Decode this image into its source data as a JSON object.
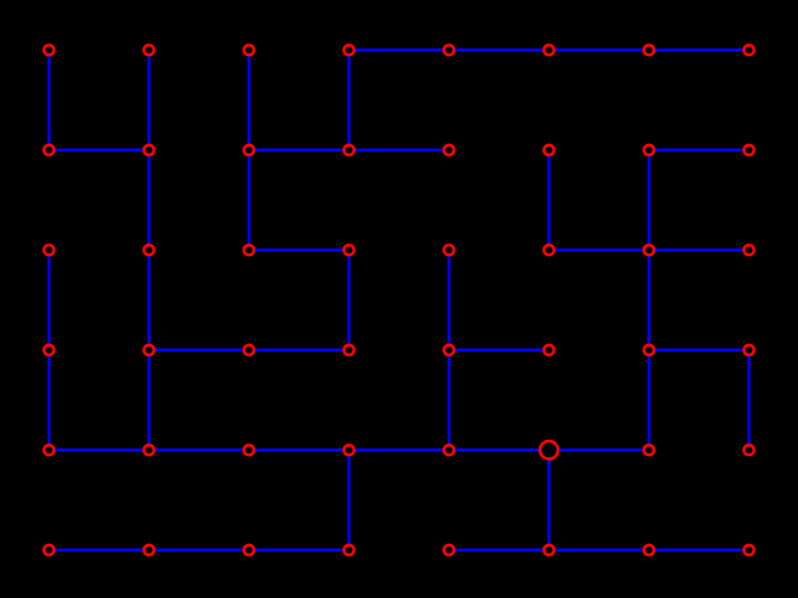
{
  "colors": {
    "background": "#000000",
    "edge": "#0000ff",
    "node": "#ff0000",
    "node_fill": "#000000"
  },
  "grid": {
    "columns": 8,
    "rows": 6
  },
  "highlighted_node": [
    5,
    4
  ],
  "edges": [
    [
      [
        0,
        0
      ],
      [
        0,
        1
      ]
    ],
    [
      [
        0,
        1
      ],
      [
        1,
        1
      ]
    ],
    [
      [
        1,
        0
      ],
      [
        1,
        1
      ]
    ],
    [
      [
        1,
        1
      ],
      [
        1,
        2
      ]
    ],
    [
      [
        1,
        2
      ],
      [
        1,
        3
      ]
    ],
    [
      [
        2,
        0
      ],
      [
        2,
        1
      ]
    ],
    [
      [
        2,
        1
      ],
      [
        3,
        1
      ]
    ],
    [
      [
        3,
        1
      ],
      [
        4,
        1
      ]
    ],
    [
      [
        2,
        1
      ],
      [
        2,
        2
      ]
    ],
    [
      [
        2,
        2
      ],
      [
        3,
        2
      ]
    ],
    [
      [
        3,
        2
      ],
      [
        3,
        3
      ]
    ],
    [
      [
        1,
        3
      ],
      [
        2,
        3
      ]
    ],
    [
      [
        2,
        3
      ],
      [
        3,
        3
      ]
    ],
    [
      [
        3,
        0
      ],
      [
        4,
        0
      ]
    ],
    [
      [
        4,
        0
      ],
      [
        5,
        0
      ]
    ],
    [
      [
        5,
        0
      ],
      [
        6,
        0
      ]
    ],
    [
      [
        6,
        0
      ],
      [
        7,
        0
      ]
    ],
    [
      [
        3,
        0
      ],
      [
        3,
        1
      ]
    ],
    [
      [
        5,
        1
      ],
      [
        5,
        2
      ]
    ],
    [
      [
        5,
        2
      ],
      [
        6,
        2
      ]
    ],
    [
      [
        6,
        2
      ],
      [
        7,
        2
      ]
    ],
    [
      [
        6,
        1
      ],
      [
        7,
        1
      ]
    ],
    [
      [
        6,
        1
      ],
      [
        6,
        2
      ]
    ],
    [
      [
        6,
        2
      ],
      [
        6,
        3
      ]
    ],
    [
      [
        6,
        3
      ],
      [
        6,
        4
      ]
    ],
    [
      [
        6,
        3
      ],
      [
        7,
        3
      ]
    ],
    [
      [
        7,
        3
      ],
      [
        7,
        4
      ]
    ],
    [
      [
        4,
        2
      ],
      [
        4,
        3
      ]
    ],
    [
      [
        4,
        3
      ],
      [
        5,
        3
      ]
    ],
    [
      [
        4,
        3
      ],
      [
        4,
        4
      ]
    ],
    [
      [
        0,
        2
      ],
      [
        0,
        3
      ]
    ],
    [
      [
        0,
        3
      ],
      [
        0,
        4
      ]
    ],
    [
      [
        1,
        3
      ],
      [
        1,
        4
      ]
    ],
    [
      [
        0,
        4
      ],
      [
        1,
        4
      ]
    ],
    [
      [
        1,
        4
      ],
      [
        2,
        4
      ]
    ],
    [
      [
        2,
        4
      ],
      [
        3,
        4
      ]
    ],
    [
      [
        3,
        4
      ],
      [
        4,
        4
      ]
    ],
    [
      [
        4,
        4
      ],
      [
        5,
        4
      ]
    ],
    [
      [
        5,
        4
      ],
      [
        6,
        4
      ]
    ],
    [
      [
        3,
        4
      ],
      [
        3,
        5
      ]
    ],
    [
      [
        0,
        5
      ],
      [
        1,
        5
      ]
    ],
    [
      [
        1,
        5
      ],
      [
        2,
        5
      ]
    ],
    [
      [
        2,
        5
      ],
      [
        3,
        5
      ]
    ],
    [
      [
        5,
        4
      ],
      [
        5,
        5
      ]
    ],
    [
      [
        4,
        5
      ],
      [
        5,
        5
      ]
    ],
    [
      [
        5,
        5
      ],
      [
        6,
        5
      ]
    ],
    [
      [
        6,
        5
      ],
      [
        7,
        5
      ]
    ]
  ]
}
